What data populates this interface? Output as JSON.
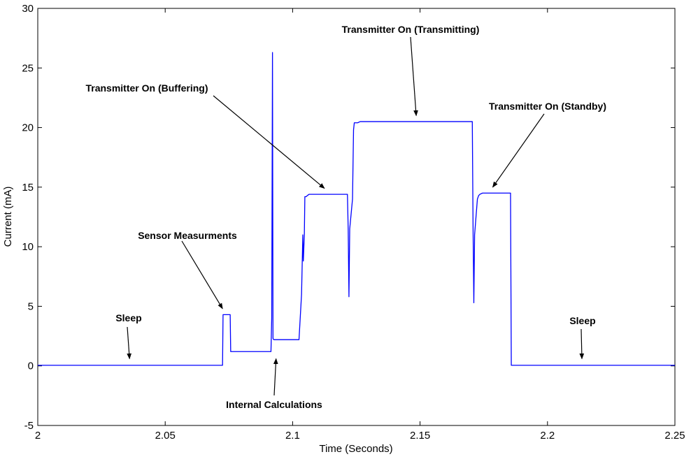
{
  "chart_data": {
    "type": "line",
    "title": "",
    "xlabel": "Time (Seconds)",
    "ylabel": "Current (mA)",
    "xlim": [
      2.0,
      2.25
    ],
    "ylim": [
      -5,
      30
    ],
    "x_ticks": [
      2.0,
      2.05,
      2.1,
      2.15,
      2.2,
      2.25
    ],
    "x_tick_labels": [
      "2",
      "2.05",
      "2.1",
      "2.15",
      "2.2",
      "2.25"
    ],
    "y_ticks": [
      -5,
      0,
      5,
      10,
      15,
      20,
      25,
      30
    ],
    "y_tick_labels": [
      "-5",
      "0",
      "5",
      "10",
      "15",
      "20",
      "25",
      "30"
    ],
    "grid": false,
    "line_color": "#0000ff",
    "series": [
      {
        "x": [
          2.0,
          2.0725,
          2.0727,
          2.0755,
          2.0757,
          2.0915,
          2.0918,
          2.0921,
          2.0923,
          2.0926,
          2.0929,
          2.1025,
          2.1035,
          2.104,
          2.1042,
          2.1046,
          2.1048,
          2.1053,
          2.1058,
          2.1065,
          2.1215,
          2.1218,
          2.1221,
          2.1224,
          2.1235,
          2.1239,
          2.1242,
          2.1255,
          2.1265,
          2.1705,
          2.1708,
          2.1711,
          2.1714,
          2.1725,
          2.173,
          2.1735,
          2.1745,
          2.1855,
          2.1858,
          2.25
        ],
        "y": [
          0.05,
          0.05,
          4.3,
          4.3,
          1.2,
          1.2,
          4.0,
          26.3,
          2.3,
          2.2,
          2.2,
          2.2,
          6.0,
          11.0,
          8.8,
          11.0,
          14.2,
          14.2,
          14.3,
          14.4,
          14.4,
          11.5,
          5.8,
          11.5,
          14.0,
          19.8,
          20.4,
          20.4,
          20.5,
          20.5,
          11.5,
          5.3,
          11.0,
          14.0,
          14.3,
          14.4,
          14.5,
          14.5,
          0.05,
          0.05
        ]
      }
    ],
    "annotations": [
      {
        "text": "Sleep",
        "target": [
          2.036,
          0.6
        ]
      },
      {
        "text": "Sensor Measurments",
        "target": [
          2.0725,
          4.8
        ]
      },
      {
        "text": "Internal Calculations",
        "target": [
          2.0935,
          0.6
        ]
      },
      {
        "text": "Transmitter On (Buffering)",
        "target": [
          2.1125,
          14.9
        ]
      },
      {
        "text": "Transmitter On (Transmitting)",
        "target": [
          2.1485,
          21.0
        ]
      },
      {
        "text": "Transmitter On (Standby)",
        "target": [
          2.1785,
          15.0
        ]
      },
      {
        "text": "Sleep",
        "target": [
          2.2135,
          0.6
        ]
      }
    ]
  }
}
